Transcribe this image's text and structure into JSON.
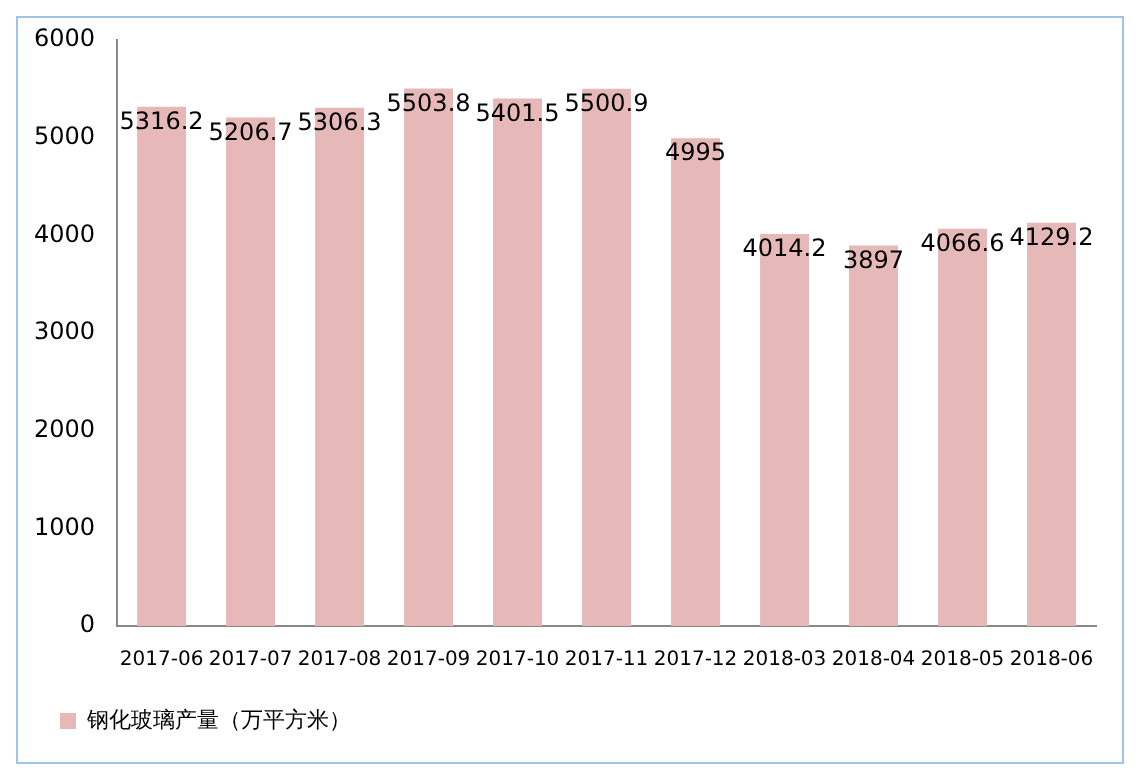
{
  "chart_data": {
    "type": "bar",
    "categories": [
      "2017-06",
      "2017-07",
      "2017-08",
      "2017-09",
      "2017-10",
      "2017-11",
      "2017-12",
      "2018-03",
      "2018-04",
      "2018-05",
      "2018-06"
    ],
    "series": [
      {
        "name": "钢化玻璃产量（万平方米）",
        "color": "#e6b9b8",
        "values": [
          5316.2,
          5206.7,
          5306.3,
          5503.8,
          5401.5,
          5500.9,
          4995,
          4014.2,
          3897,
          4066.6,
          4129.2
        ]
      }
    ],
    "ylim": [
      0,
      6000
    ],
    "yticks": [
      0,
      1000,
      2000,
      3000,
      4000,
      5000,
      6000
    ],
    "grid": false,
    "legend": "bottom left",
    "data_labels": true
  }
}
